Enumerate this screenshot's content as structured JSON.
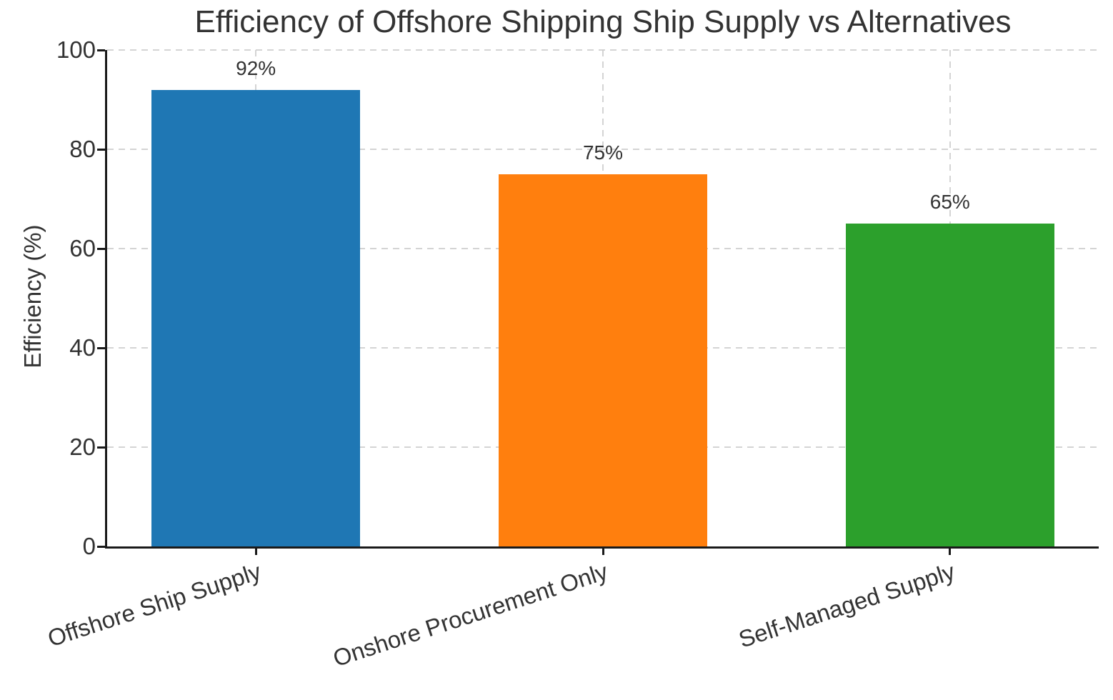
{
  "chart_data": {
    "type": "bar",
    "title": "Efficiency of Offshore Shipping Ship Supply vs Alternatives",
    "xlabel": "",
    "ylabel": "Efficiency (%)",
    "categories": [
      "Offshore Ship Supply",
      "Onshore Procurement Only",
      "Self-Managed Supply"
    ],
    "values": [
      92,
      75,
      65
    ],
    "value_labels": [
      "92%",
      "75%",
      "65%"
    ],
    "series": [
      {
        "name": "Efficiency",
        "values": [
          92,
          75,
          65
        ]
      }
    ],
    "bar_colors": [
      "#1f77b4",
      "#ff7f0e",
      "#2ca02c"
    ],
    "ylim": [
      0,
      100
    ],
    "yticks": [
      0,
      20,
      40,
      60,
      80,
      100
    ],
    "ytick_labels": [
      "0",
      "20",
      "40",
      "60",
      "80",
      "100"
    ],
    "xtick_rotation": 18,
    "grid": {
      "visible": true,
      "linestyle": "dashed",
      "axes": "both"
    },
    "legend": "none",
    "background": "#ffffff"
  },
  "style": {
    "text_color": "#333333",
    "grid_color": "#cccccc",
    "axis_color": "#1a1a1a",
    "background": "#ffffff"
  }
}
